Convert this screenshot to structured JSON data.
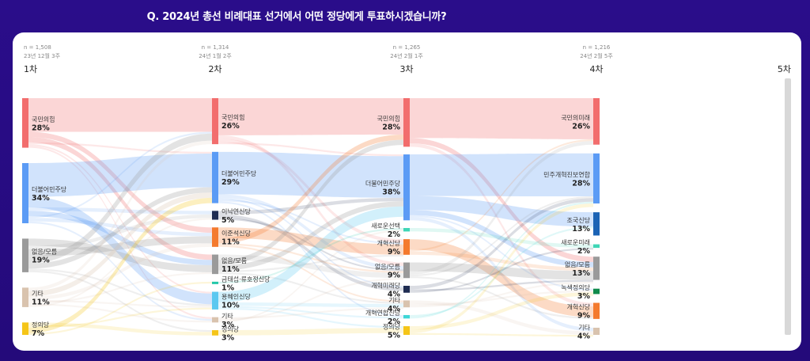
{
  "title": "Q. 2024년 총선 비례대표 선거에서 어떤 정당에게 투표하시겠습니까?",
  "chart_data": {
    "type": "sankey",
    "waves": [
      {
        "label": "1차",
        "n": "n = 1,508",
        "date": "23년 12월 3주"
      },
      {
        "label": "2차",
        "n": "n = 1,314",
        "date": "24년 1월 2주"
      },
      {
        "label": "3차",
        "n": "n = 1,265",
        "date": "24년 2월 1주"
      },
      {
        "label": "4차",
        "n": "n = 1,216",
        "date": "24년 2월 5주"
      },
      {
        "label": "5차",
        "n": "",
        "date": ""
      }
    ],
    "nodes": [
      [
        {
          "name": "국민의힘",
          "value": 28,
          "pct": "28%",
          "color": "#f26d6d"
        },
        {
          "name": "더불어민주당",
          "value": 34,
          "pct": "34%",
          "color": "#5b9bf5"
        },
        {
          "name": "없음/모름",
          "value": 19,
          "pct": "19%",
          "color": "#9a9a9a"
        },
        {
          "name": "기타",
          "value": 11,
          "pct": "11%",
          "color": "#d9c3ae"
        },
        {
          "name": "정의당",
          "value": 7,
          "pct": "7%",
          "color": "#f5c518"
        }
      ],
      [
        {
          "name": "국민의힘",
          "value": 26,
          "pct": "26%",
          "color": "#f26d6d"
        },
        {
          "name": "더불어민주당",
          "value": 29,
          "pct": "29%",
          "color": "#5b9bf5"
        },
        {
          "name": "이낙연신당",
          "value": 5,
          "pct": "5%",
          "color": "#1f2d52"
        },
        {
          "name": "이준석신당",
          "value": 11,
          "pct": "11%",
          "color": "#f47a2e"
        },
        {
          "name": "없음/모름",
          "value": 11,
          "pct": "11%",
          "color": "#9a9a9a"
        },
        {
          "name": "금태섭·류호정신당",
          "value": 1,
          "pct": "1%",
          "color": "#22c7a9"
        },
        {
          "name": "용혜인신당",
          "value": 10,
          "pct": "10%",
          "color": "#5cc8f0"
        },
        {
          "name": "기타",
          "value": 3,
          "pct": "3%",
          "color": "#d9c3ae"
        },
        {
          "name": "정의당",
          "value": 3,
          "pct": "3%",
          "color": "#f5c518"
        }
      ],
      [
        {
          "name": "국민의힘",
          "value": 28,
          "pct": "28%",
          "color": "#f26d6d"
        },
        {
          "name": "더불어민주당",
          "value": 38,
          "pct": "38%",
          "color": "#5b9bf5"
        },
        {
          "name": "새로운선택",
          "value": 2,
          "pct": "2%",
          "color": "#3fd6b6"
        },
        {
          "name": "개혁신당",
          "value": 9,
          "pct": "9%",
          "color": "#f47a2e"
        },
        {
          "name": "없음/모름",
          "value": 9,
          "pct": "9%",
          "color": "#9a9a9a"
        },
        {
          "name": "개혁미래당",
          "value": 4,
          "pct": "4%",
          "color": "#1f2d52"
        },
        {
          "name": "기타",
          "value": 4,
          "pct": "4%",
          "color": "#d9c3ae"
        },
        {
          "name": "개혁연합신당",
          "value": 2,
          "pct": "2%",
          "color": "#3fd6d6"
        },
        {
          "name": "정의당",
          "value": 5,
          "pct": "5%",
          "color": "#f5c518"
        }
      ],
      [
        {
          "name": "국민의미래",
          "value": 26,
          "pct": "26%",
          "color": "#f26d6d"
        },
        {
          "name": "민주개혁진보연합",
          "value": 28,
          "pct": "28%",
          "color": "#5b9bf5"
        },
        {
          "name": "조국신당",
          "value": 13,
          "pct": "13%",
          "color": "#1b63b5"
        },
        {
          "name": "새로운미래",
          "value": 2,
          "pct": "2%",
          "color": "#3fd6b6"
        },
        {
          "name": "없음/모름",
          "value": 13,
          "pct": "13%",
          "color": "#9a9a9a"
        },
        {
          "name": "녹색정의당",
          "value": 3,
          "pct": "3%",
          "color": "#0f8a4a"
        },
        {
          "name": "개혁신당",
          "value": 9,
          "pct": "9%",
          "color": "#f47a2e"
        },
        {
          "name": "기타",
          "value": 4,
          "pct": "4%",
          "color": "#d9c3ae"
        }
      ]
    ],
    "links": [
      [
        [
          0,
          0,
          19
        ],
        [
          0,
          3,
          3
        ],
        [
          0,
          4,
          3
        ],
        [
          0,
          1,
          1
        ],
        [
          0,
          6,
          1
        ],
        [
          0,
          7,
          1
        ],
        [
          1,
          1,
          19
        ],
        [
          1,
          6,
          6
        ],
        [
          1,
          2,
          2
        ],
        [
          1,
          4,
          3
        ],
        [
          1,
          0,
          1
        ],
        [
          1,
          3,
          2
        ],
        [
          1,
          7,
          1
        ],
        [
          2,
          4,
          4
        ],
        [
          2,
          2,
          2
        ],
        [
          2,
          3,
          4
        ],
        [
          2,
          0,
          4
        ],
        [
          2,
          1,
          3
        ],
        [
          2,
          6,
          1
        ],
        [
          2,
          8,
          1
        ],
        [
          3,
          0,
          2
        ],
        [
          3,
          1,
          3
        ],
        [
          3,
          3,
          2
        ],
        [
          3,
          6,
          1
        ],
        [
          3,
          4,
          1
        ],
        [
          3,
          7,
          1
        ],
        [
          3,
          2,
          1
        ],
        [
          4,
          8,
          2
        ],
        [
          4,
          6,
          1
        ],
        [
          4,
          1,
          3
        ],
        [
          4,
          5,
          1
        ]
      ],
      [
        [
          0,
          0,
          21
        ],
        [
          0,
          4,
          2
        ],
        [
          0,
          3,
          2
        ],
        [
          0,
          1,
          1
        ],
        [
          1,
          1,
          24
        ],
        [
          1,
          4,
          2
        ],
        [
          1,
          5,
          1
        ],
        [
          1,
          3,
          1
        ],
        [
          1,
          7,
          1
        ],
        [
          2,
          1,
          2
        ],
        [
          2,
          5,
          2
        ],
        [
          2,
          4,
          1
        ],
        [
          3,
          3,
          6
        ],
        [
          3,
          0,
          3
        ],
        [
          3,
          4,
          1
        ],
        [
          3,
          6,
          1
        ],
        [
          4,
          4,
          3
        ],
        [
          4,
          0,
          3
        ],
        [
          4,
          1,
          3
        ],
        [
          4,
          3,
          1
        ],
        [
          4,
          6,
          1
        ],
        [
          5,
          2,
          1
        ],
        [
          6,
          1,
          6
        ],
        [
          6,
          6,
          2
        ],
        [
          6,
          7,
          1
        ],
        [
          6,
          8,
          1
        ],
        [
          7,
          6,
          1
        ],
        [
          7,
          4,
          1
        ],
        [
          7,
          2,
          1
        ],
        [
          8,
          8,
          3
        ]
      ],
      [
        [
          0,
          0,
          23
        ],
        [
          0,
          4,
          3
        ],
        [
          0,
          6,
          2
        ],
        [
          1,
          1,
          24
        ],
        [
          1,
          2,
          8
        ],
        [
          1,
          4,
          3
        ],
        [
          1,
          5,
          1
        ],
        [
          1,
          7,
          2
        ],
        [
          2,
          3,
          2
        ],
        [
          3,
          6,
          6
        ],
        [
          3,
          0,
          1
        ],
        [
          3,
          4,
          2
        ],
        [
          4,
          4,
          5
        ],
        [
          4,
          0,
          2
        ],
        [
          4,
          1,
          1
        ],
        [
          4,
          6,
          1
        ],
        [
          5,
          1,
          2
        ],
        [
          5,
          4,
          1
        ],
        [
          5,
          3,
          1
        ],
        [
          6,
          7,
          2
        ],
        [
          6,
          5,
          1
        ],
        [
          6,
          4,
          1
        ],
        [
          7,
          2,
          1
        ],
        [
          7,
          1,
          1
        ],
        [
          8,
          5,
          2
        ],
        [
          8,
          1,
          2
        ],
        [
          8,
          7,
          1
        ]
      ]
    ]
  }
}
